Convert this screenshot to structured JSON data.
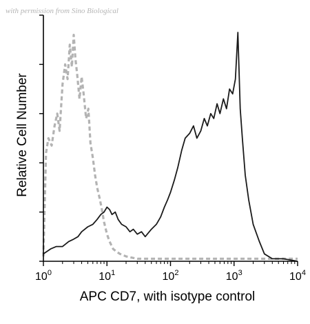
{
  "watermark": "with permission from Sino Biological",
  "chart_data": {
    "type": "line",
    "title": "",
    "xlabel": "APC CD7, with isotype control",
    "ylabel": "Relative Cell Number",
    "xscale": "log",
    "xlim": [
      1,
      10000
    ],
    "ylim": [
      0,
      100
    ],
    "x_ticks": [
      {
        "base": "10",
        "exp": "0",
        "value": 1
      },
      {
        "base": "10",
        "exp": "1",
        "value": 10
      },
      {
        "base": "10",
        "exp": "2",
        "value": 100
      },
      {
        "base": "10",
        "exp": "3",
        "value": 1000
      },
      {
        "base": "10",
        "exp": "4",
        "value": 10000
      }
    ],
    "y_ticks_count": 6,
    "grid": false,
    "legend": "none",
    "series": [
      {
        "style": "dashed",
        "color": "#b3b3b3",
        "x": [
          1.0,
          1.1,
          1.2,
          1.35,
          1.5,
          1.65,
          1.8,
          2.0,
          2.2,
          2.4,
          2.6,
          2.8,
          3.0,
          3.2,
          3.4,
          3.7,
          4.0,
          4.3,
          4.7,
          5.1,
          5.5,
          6.0,
          6.5,
          7.0,
          7.6,
          8.2,
          9.0,
          10.0,
          11.0,
          12.5,
          14.0,
          16.0,
          20.0,
          30.0,
          50.0,
          100.0,
          300.0,
          1000.0,
          3000.0,
          10000.0
        ],
        "y": [
          2,
          44,
          50,
          47,
          55,
          60,
          53,
          72,
          80,
          74,
          88,
          79,
          92,
          82,
          76,
          66,
          75,
          68,
          58,
          62,
          48,
          42,
          35,
          30,
          26,
          22,
          16,
          11,
          8,
          5,
          4,
          3,
          2,
          1,
          1,
          1,
          1,
          1,
          1,
          1
        ]
      },
      {
        "style": "solid",
        "color": "#1a1a1a",
        "x": [
          1.0,
          1.3,
          1.6,
          2.0,
          2.5,
          3.0,
          3.5,
          4.0,
          5.0,
          6.0,
          7.0,
          8.0,
          9.0,
          10.0,
          11.0,
          12.0,
          13.5,
          15.0,
          17.0,
          20.0,
          23.0,
          26.0,
          30.0,
          35.0,
          40.0,
          50.0,
          60.0,
          70.0,
          80.0,
          90.0,
          100.0,
          115.0,
          130.0,
          150.0,
          170.0,
          200.0,
          230.0,
          260.0,
          300.0,
          340.0,
          380.0,
          430.0,
          480.0,
          540.0,
          600.0,
          680.0,
          760.0,
          850.0,
          950.0,
          1050.0,
          1150.0,
          1250.0,
          1350.0,
          1500.0,
          1700.0,
          2000.0,
          2500.0,
          3000.0,
          4000.0,
          6000.0,
          10000.0
        ],
        "y": [
          3,
          5,
          6,
          6,
          8,
          9,
          10,
          12,
          14,
          15,
          17,
          19,
          20,
          22,
          21,
          19,
          20,
          17,
          15,
          14,
          12,
          13,
          11,
          12,
          10,
          13,
          15,
          18,
          22,
          25,
          28,
          33,
          38,
          45,
          50,
          52,
          55,
          50,
          53,
          58,
          55,
          60,
          58,
          64,
          60,
          66,
          62,
          70,
          68,
          74,
          93,
          62,
          50,
          35,
          25,
          15,
          8,
          3,
          1,
          1,
          0
        ]
      }
    ]
  }
}
